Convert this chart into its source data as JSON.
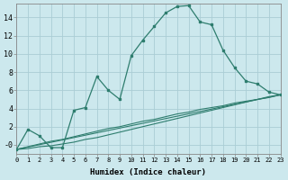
{
  "xlabel": "Humidex (Indice chaleur)",
  "bg_color": "#cce8ed",
  "grid_color": "#aacdd5",
  "line_color": "#2e7d6e",
  "xlim": [
    0,
    23
  ],
  "ylim": [
    -1.0,
    15.5
  ],
  "ytick_vals": [
    0,
    2,
    4,
    6,
    8,
    10,
    12,
    14
  ],
  "ytick_labels": [
    "-0",
    "2",
    "4",
    "6",
    "8",
    "10",
    "12",
    "14"
  ],
  "xtick_vals": [
    0,
    1,
    2,
    3,
    4,
    5,
    6,
    7,
    8,
    9,
    10,
    11,
    12,
    13,
    14,
    15,
    16,
    17,
    18,
    19,
    20,
    21,
    22,
    23
  ],
  "curve_x": [
    0,
    1,
    2,
    3,
    4,
    5,
    6,
    7,
    8,
    9,
    10,
    11,
    12,
    13,
    14,
    15,
    16,
    17,
    18,
    19,
    20,
    21,
    22,
    23
  ],
  "curve_y": [
    -0.5,
    1.7,
    1.0,
    -0.3,
    -0.3,
    3.8,
    4.1,
    7.5,
    6.0,
    5.0,
    9.8,
    11.5,
    13.0,
    14.5,
    15.2,
    15.3,
    13.5,
    13.2,
    10.4,
    8.5,
    7.0,
    6.7,
    5.8,
    5.5
  ],
  "line1_x": [
    0,
    23
  ],
  "line1_y": [
    -0.5,
    5.5
  ],
  "line2_x": [
    0,
    1,
    2,
    3,
    4,
    5,
    6,
    7,
    8,
    9,
    10,
    11,
    12,
    13,
    14,
    15,
    16,
    17,
    18,
    19,
    20,
    21,
    22,
    23
  ],
  "line2_y": [
    -0.5,
    -0.2,
    0.1,
    0.4,
    0.6,
    0.9,
    1.2,
    1.5,
    1.8,
    2.0,
    2.3,
    2.6,
    2.8,
    3.1,
    3.4,
    3.6,
    3.9,
    4.1,
    4.3,
    4.6,
    4.8,
    5.0,
    5.2,
    5.5
  ],
  "line3_x": [
    0,
    1,
    2,
    3,
    4,
    5,
    6,
    7,
    8,
    9,
    10,
    11,
    12,
    13,
    14,
    15,
    16,
    17,
    18,
    19,
    20,
    21,
    22,
    23
  ],
  "line3_y": [
    -0.5,
    -0.4,
    -0.2,
    -0.1,
    0.1,
    0.3,
    0.6,
    0.8,
    1.1,
    1.4,
    1.7,
    2.0,
    2.3,
    2.6,
    2.9,
    3.2,
    3.5,
    3.8,
    4.1,
    4.4,
    4.7,
    5.0,
    5.3,
    5.5
  ]
}
